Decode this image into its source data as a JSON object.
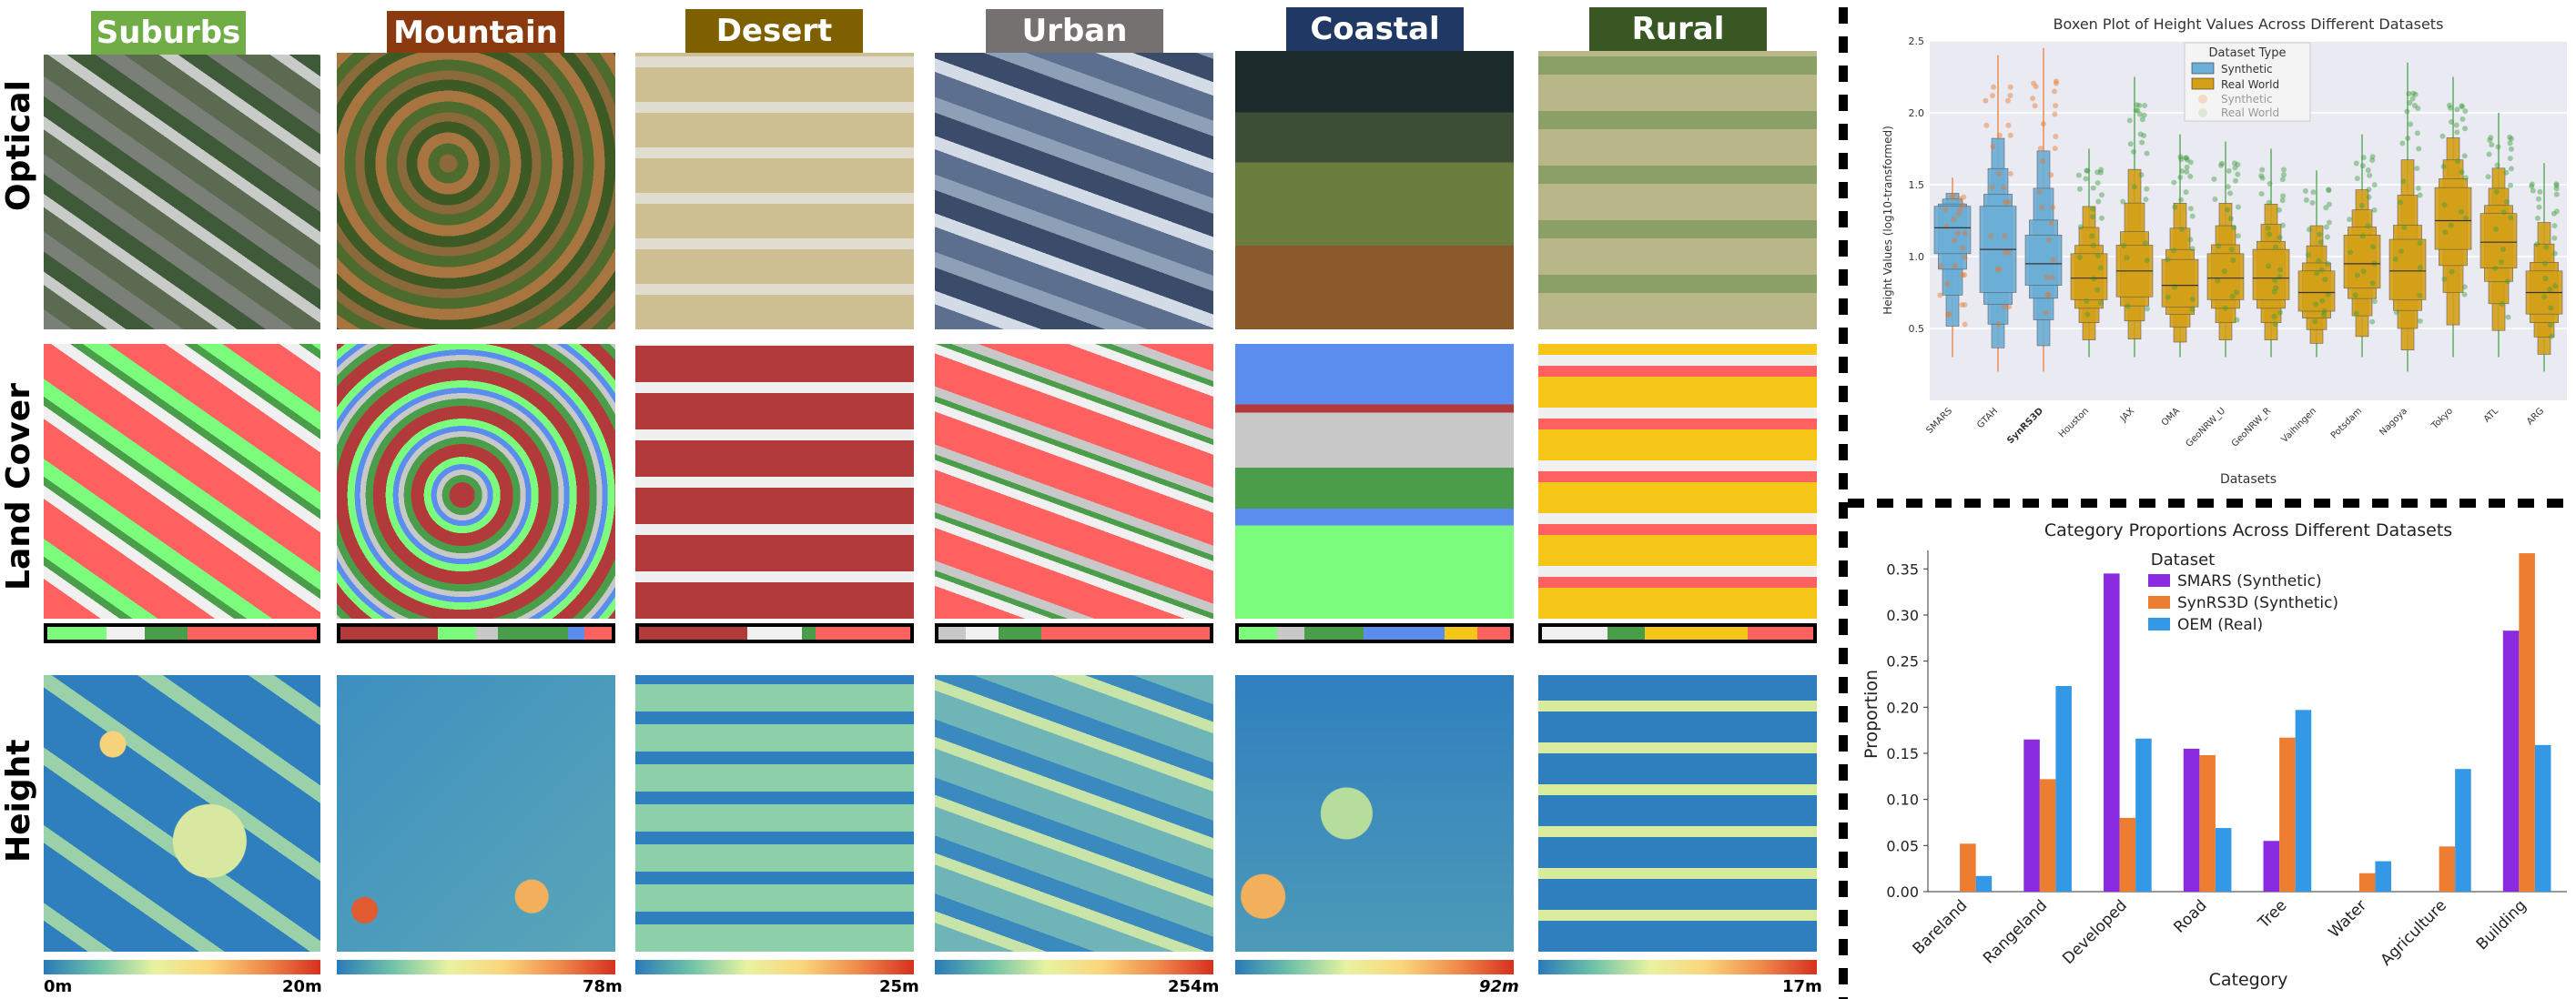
{
  "rows": [
    "Optical",
    "Land Cover",
    "Height"
  ],
  "scenes": [
    {
      "name": "Suburbs",
      "color": "#70ad47",
      "max_height": "20m",
      "min_height": "0m"
    },
    {
      "name": "Mountain",
      "color": "#8b3a0f",
      "max_height": "78m",
      "min_height": ""
    },
    {
      "name": "Desert",
      "color": "#7f6000",
      "max_height": "25m",
      "min_height": ""
    },
    {
      "name": "Urban",
      "color": "#767171",
      "max_height": "254m",
      "min_height": ""
    },
    {
      "name": "Coastal",
      "color": "#1f3864",
      "max_height": "92m",
      "min_height": ""
    },
    {
      "name": "Rural",
      "color": "#385723",
      "max_height": "17m",
      "min_height": ""
    }
  ],
  "landcover_colors": {
    "bareland": "#ffffff",
    "rangeland": "#7cfc7c",
    "developed": "#c8c8c8",
    "road": "#f0f0f0",
    "tree": "#4a9e4a",
    "water": "#5b8def",
    "agriculture": "#f5c518",
    "building": "#ff6060",
    "dark_building": "#b33a3a"
  },
  "chart_data": [
    {
      "type": "boxen",
      "title": "Boxen Plot of Height Values Across Different Datasets",
      "xlabel": "Datasets",
      "ylabel": "Height Values (log10-transformed)",
      "ylim": [
        0.0,
        2.5
      ],
      "yticks": [
        "0.5",
        "1.0",
        "1.5",
        "2.0",
        "2.5"
      ],
      "legend": {
        "title": "Dataset Type",
        "entries": [
          "Synthetic",
          "Real World",
          "Synthetic",
          "Real World"
        ],
        "placement": "top-center"
      },
      "categories": [
        "SMARS",
        "GTAH",
        "SynRS3D",
        "Houston",
        "JAX",
        "OMA",
        "GeoNRW_U",
        "GeoNRW_R",
        "Vaihingen",
        "Potsdam",
        "Nagoya",
        "Tokyo",
        "ATL",
        "ARG"
      ],
      "bold_category": "SynRS3D",
      "dataset_type": [
        "Synthetic",
        "Synthetic",
        "Synthetic",
        "Real World",
        "Real World",
        "Real World",
        "Real World",
        "Real World",
        "Real World",
        "Real World",
        "Real World",
        "Real World",
        "Real World",
        "Real World"
      ],
      "medians": [
        1.2,
        1.05,
        0.95,
        0.85,
        0.9,
        0.8,
        0.85,
        0.85,
        0.75,
        0.95,
        0.9,
        1.25,
        1.1,
        0.75
      ],
      "q1": [
        1.02,
        0.75,
        0.8,
        0.7,
        0.72,
        0.65,
        0.7,
        0.7,
        0.62,
        0.78,
        0.7,
        1.05,
        0.92,
        0.6
      ],
      "q3": [
        1.35,
        1.35,
        1.15,
        1.02,
        1.08,
        0.98,
        1.02,
        1.05,
        0.9,
        1.15,
        1.12,
        1.48,
        1.3,
        0.9
      ],
      "low": [
        0.3,
        0.2,
        0.2,
        0.3,
        0.3,
        0.3,
        0.3,
        0.3,
        0.3,
        0.3,
        0.2,
        0.3,
        0.3,
        0.2
      ],
      "high": [
        1.55,
        2.4,
        2.45,
        1.75,
        2.25,
        1.85,
        1.8,
        1.75,
        1.6,
        1.85,
        2.35,
        2.25,
        2.0,
        1.65
      ]
    },
    {
      "type": "bar",
      "title": "Category Proportions Across Different Datasets",
      "xlabel": "Category",
      "ylabel": "Proportion",
      "ylim": [
        0,
        0.37
      ],
      "yticks": [
        "0.00",
        "0.05",
        "0.10",
        "0.15",
        "0.20",
        "0.25",
        "0.30",
        "0.35"
      ],
      "legend": {
        "title": "Dataset",
        "placement": "top-center"
      },
      "categories": [
        "Bareland",
        "Rangeland",
        "Developed",
        "Road",
        "Tree",
        "Water",
        "Agriculture",
        "Building"
      ],
      "series": [
        {
          "name": "SMARS (Synthetic)",
          "color": "#8a2be2",
          "values": [
            0.0,
            0.165,
            0.345,
            0.155,
            0.055,
            0.0,
            0.0,
            0.283
          ]
        },
        {
          "name": "SynRS3D (Synthetic)",
          "color": "#ed7d31",
          "values": [
            0.052,
            0.122,
            0.08,
            0.148,
            0.167,
            0.02,
            0.049,
            0.367
          ]
        },
        {
          "name": "OEM (Real)",
          "color": "#3399e6",
          "values": [
            0.017,
            0.223,
            0.166,
            0.069,
            0.197,
            0.033,
            0.133,
            0.159
          ]
        }
      ]
    }
  ]
}
